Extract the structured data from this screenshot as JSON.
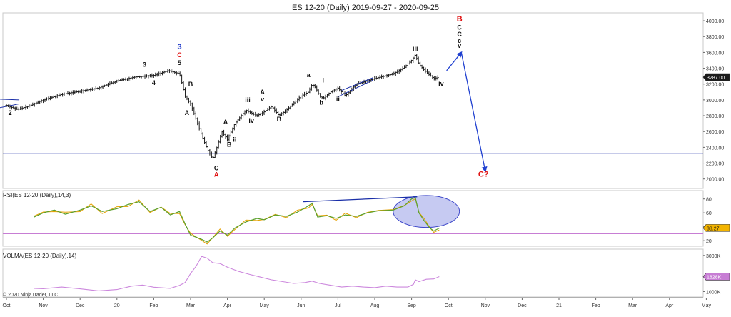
{
  "title": "ES 12-20 (Daily)  2019-09-27 - 2020-09-25",
  "copyright": "© 2020 NinjaTrader, LLC",
  "colors": {
    "price_bar": "#1a1a1a",
    "price_axis_bg": "#ffffff",
    "last_price_bg": "#1a1a1a",
    "support_line": "#1a2fa8",
    "wave_black": "#111111",
    "wave_red": "#e01010",
    "wave_blue": "#1a35c8",
    "projection": "#2040d0",
    "rsi_line": "#5aa02c",
    "rsi_signal": "#e5a000",
    "rsi_upper": "#b9c96a",
    "rsi_lower": "#c77dd4",
    "ellipse_fill": "#b3b8ee",
    "ellipse_stroke": "#3a44c8",
    "volma_line": "#cc88dd",
    "grid": "#e6e6e6",
    "rsi_badge": "#f3b400",
    "volma_badge": "#c77dd4"
  },
  "chart_data": [
    {
      "id": "price",
      "type": "ohlc",
      "title": "ES 12-20 (Daily)  2019-09-27 - 2020-09-25",
      "x_tick_labels": [
        "Oct",
        "Nov",
        "Dec",
        "20",
        "Feb",
        "Mar",
        "Apr",
        "May",
        "Jun",
        "Jul",
        "Aug",
        "Sep",
        "Oct",
        "Nov",
        "Dec",
        "21",
        "Feb",
        "Mar",
        "Apr",
        "May"
      ],
      "x_months_start": "2019-10",
      "ylim": [
        1880,
        4100
      ],
      "y_ticks": [
        2000,
        2200,
        2400,
        2600,
        2800,
        3000,
        3200,
        3400,
        3600,
        3800,
        4000
      ],
      "y_tick_labels": [
        "2000.00",
        "2200.00",
        "2400.00",
        "2600.00",
        "2800.00",
        "3000.00",
        "3200.00",
        "3400.00",
        "3600.00",
        "3800.00",
        "4000.00"
      ],
      "last_price": 3287,
      "last_price_label": "3287.00",
      "horizontal_support": 2320,
      "close_path_monthly": [
        [
          0,
          2930
        ],
        [
          0.3,
          2880
        ],
        [
          0.6,
          2920
        ],
        [
          1.0,
          3000
        ],
        [
          1.5,
          3070
        ],
        [
          2.0,
          3110
        ],
        [
          2.5,
          3150
        ],
        [
          3.0,
          3240
        ],
        [
          3.5,
          3290
        ],
        [
          4.0,
          3310
        ],
        [
          4.4,
          3370
        ],
        [
          4.7,
          3330
        ],
        [
          4.85,
          3050
        ],
        [
          5.0,
          2950
        ],
        [
          5.15,
          2750
        ],
        [
          5.3,
          2550
        ],
        [
          5.45,
          2380
        ],
        [
          5.6,
          2250
        ],
        [
          5.7,
          2380
        ],
        [
          5.85,
          2600
        ],
        [
          6.0,
          2500
        ],
        [
          6.2,
          2700
        ],
        [
          6.5,
          2870
        ],
        [
          6.8,
          2800
        ],
        [
          7.0,
          2850
        ],
        [
          7.2,
          2920
        ],
        [
          7.4,
          2800
        ],
        [
          7.6,
          2870
        ],
        [
          7.8,
          2960
        ],
        [
          8.0,
          3050
        ],
        [
          8.2,
          3100
        ],
        [
          8.3,
          3200
        ],
        [
          8.4,
          3150
        ],
        [
          8.5,
          3050
        ],
        [
          8.6,
          3020
        ],
        [
          8.8,
          3100
        ],
        [
          9.0,
          3150
        ],
        [
          9.2,
          3050
        ],
        [
          9.5,
          3200
        ],
        [
          10.0,
          3270
        ],
        [
          10.5,
          3330
        ],
        [
          10.8,
          3410
        ],
        [
          11.0,
          3500
        ],
        [
          11.1,
          3570
        ],
        [
          11.2,
          3450
        ],
        [
          11.4,
          3350
        ],
        [
          11.6,
          3270
        ],
        [
          11.75,
          3287
        ]
      ],
      "wave_labels": [
        {
          "text": "2",
          "x": 0.1,
          "y": 2810,
          "color": "black"
        },
        {
          "text": "3",
          "x": 3.75,
          "y": 3420,
          "color": "black"
        },
        {
          "text": "4",
          "x": 4.0,
          "y": 3190,
          "color": "black"
        },
        {
          "text": "3",
          "x": 4.7,
          "y": 3640,
          "color": "blue"
        },
        {
          "text": "C",
          "x": 4.7,
          "y": 3540,
          "color": "red"
        },
        {
          "text": "5",
          "x": 4.7,
          "y": 3440,
          "color": "black"
        },
        {
          "text": "B",
          "x": 5.0,
          "y": 3170,
          "color": "black"
        },
        {
          "text": "A",
          "x": 4.9,
          "y": 2810,
          "color": "black"
        },
        {
          "text": "C",
          "x": 5.7,
          "y": 2110,
          "color": "black"
        },
        {
          "text": "A",
          "x": 5.7,
          "y": 2030,
          "color": "red"
        },
        {
          "text": "A",
          "x": 5.95,
          "y": 2690,
          "color": "black"
        },
        {
          "text": "B",
          "x": 6.05,
          "y": 2410,
          "color": "black"
        },
        {
          "text": "ii",
          "x": 6.2,
          "y": 2470,
          "color": "black"
        },
        {
          "text": "iii",
          "x": 6.55,
          "y": 2970,
          "color": "black"
        },
        {
          "text": "iv",
          "x": 6.65,
          "y": 2710,
          "color": "black"
        },
        {
          "text": "A",
          "x": 6.95,
          "y": 3070,
          "color": "black"
        },
        {
          "text": "v",
          "x": 6.95,
          "y": 2980,
          "color": "black"
        },
        {
          "text": "B",
          "x": 7.4,
          "y": 2730,
          "color": "black"
        },
        {
          "text": "a",
          "x": 8.2,
          "y": 3290,
          "color": "black"
        },
        {
          "text": "i",
          "x": 8.6,
          "y": 3220,
          "color": "black"
        },
        {
          "text": "b",
          "x": 8.55,
          "y": 2940,
          "color": "black"
        },
        {
          "text": "ii",
          "x": 9.0,
          "y": 2980,
          "color": "black"
        },
        {
          "text": "iii",
          "x": 11.1,
          "y": 3620,
          "color": "black"
        },
        {
          "text": "iv",
          "x": 11.8,
          "y": 3180,
          "color": "black"
        },
        {
          "text": "B",
          "x": 12.3,
          "y": 3990,
          "color": "red"
        },
        {
          "text": "C",
          "x": 12.3,
          "y": 3890,
          "color": "black"
        },
        {
          "text": "C",
          "x": 12.3,
          "y": 3800,
          "color": "black"
        },
        {
          "text": "c",
          "x": 12.3,
          "y": 3720,
          "color": "black"
        },
        {
          "text": "v",
          "x": 12.3,
          "y": 3660,
          "color": "black"
        },
        {
          "text": "C?",
          "x": 12.95,
          "y": 2030,
          "color": "red"
        }
      ],
      "projection": [
        [
          11.95,
          3370
        ],
        [
          12.35,
          3600
        ],
        [
          13.0,
          2100
        ]
      ],
      "trendlines": [
        {
          "from": [
            -0.2,
            3010
          ],
          "to": [
            0.35,
            3000
          ]
        },
        {
          "from": [
            -0.2,
            2900
          ],
          "to": [
            0.35,
            2950
          ]
        },
        {
          "from": [
            9.1,
            3120
          ],
          "to": [
            9.95,
            3280
          ]
        },
        {
          "from": [
            9.0,
            3040
          ],
          "to": [
            9.95,
            3250
          ]
        }
      ]
    },
    {
      "id": "rsi",
      "type": "line",
      "title": "RSI(ES 12-20 (Daily),14,3)",
      "ylim": [
        12,
        92
      ],
      "y_ticks": [
        20,
        40,
        60,
        80
      ],
      "y_tick_labels": [
        "20",
        "40",
        "60",
        "80"
      ],
      "overbought": 70,
      "oversold": 30,
      "last_value_label": "38.27",
      "series": [
        {
          "values": [
            [
              0.75,
              54
            ],
            [
              1.0,
              60
            ],
            [
              1.3,
              64
            ],
            [
              1.6,
              58
            ],
            [
              2.0,
              64
            ],
            [
              2.3,
              70
            ],
            [
              2.6,
              62
            ],
            [
              3.0,
              66
            ],
            [
              3.3,
              72
            ],
            [
              3.6,
              76
            ],
            [
              3.9,
              62
            ],
            [
              4.2,
              68
            ],
            [
              4.45,
              57
            ],
            [
              4.7,
              62
            ],
            [
              4.85,
              44
            ],
            [
              5.0,
              28
            ],
            [
              5.3,
              22
            ],
            [
              5.45,
              18
            ],
            [
              5.6,
              24
            ],
            [
              5.8,
              34
            ],
            [
              6.0,
              28
            ],
            [
              6.2,
              38
            ],
            [
              6.5,
              47
            ],
            [
              6.8,
              52
            ],
            [
              7.0,
              50
            ],
            [
              7.3,
              57
            ],
            [
              7.6,
              55
            ],
            [
              7.9,
              61
            ],
            [
              8.2,
              70
            ],
            [
              8.3,
              74
            ],
            [
              8.45,
              54
            ],
            [
              8.7,
              56
            ],
            [
              8.95,
              52
            ],
            [
              9.2,
              57
            ],
            [
              9.5,
              55
            ],
            [
              9.8,
              60
            ],
            [
              10.1,
              63
            ],
            [
              10.5,
              64
            ],
            [
              10.8,
              70
            ],
            [
              11.0,
              80
            ],
            [
              11.1,
              82
            ],
            [
              11.2,
              60
            ],
            [
              11.35,
              48
            ],
            [
              11.5,
              38
            ],
            [
              11.6,
              34
            ],
            [
              11.75,
              38
            ]
          ]
        }
      ],
      "trendline": {
        "from": [
          8.05,
          76
        ],
        "to": [
          11.15,
          83
        ]
      },
      "highlight_ellipse": {
        "cx": 11.4,
        "cy": 62,
        "rx": 0.9,
        "ry": 23
      }
    },
    {
      "id": "volma",
      "type": "line",
      "title": "VOLMA(ES 12-20 (Daily),14)",
      "ylim": [
        700,
        3350
      ],
      "y_ticks": [
        1000,
        3000
      ],
      "y_tick_labels": [
        "1000K",
        "3000K"
      ],
      "last_value_label": "1828K",
      "series": [
        {
          "values": [
            [
              0.75,
              1180
            ],
            [
              1.0,
              1160
            ],
            [
              1.5,
              1250
            ],
            [
              2.0,
              1150
            ],
            [
              2.5,
              1040
            ],
            [
              3.0,
              1110
            ],
            [
              3.4,
              1300
            ],
            [
              3.7,
              1360
            ],
            [
              4.0,
              1240
            ],
            [
              4.45,
              1180
            ],
            [
              4.7,
              1340
            ],
            [
              4.85,
              1500
            ],
            [
              5.0,
              2000
            ],
            [
              5.15,
              2400
            ],
            [
              5.3,
              2950
            ],
            [
              5.45,
              2850
            ],
            [
              5.6,
              2600
            ],
            [
              5.8,
              2550
            ],
            [
              6.0,
              2350
            ],
            [
              6.3,
              2120
            ],
            [
              6.6,
              1950
            ],
            [
              6.9,
              1800
            ],
            [
              7.2,
              1650
            ],
            [
              7.5,
              1550
            ],
            [
              7.8,
              1450
            ],
            [
              8.1,
              1500
            ],
            [
              8.3,
              1580
            ],
            [
              8.5,
              1450
            ],
            [
              8.8,
              1350
            ],
            [
              9.1,
              1250
            ],
            [
              9.4,
              1300
            ],
            [
              9.7,
              1250
            ],
            [
              10.0,
              1220
            ],
            [
              10.3,
              1300
            ],
            [
              10.6,
              1250
            ],
            [
              10.9,
              1250
            ],
            [
              11.05,
              1400
            ],
            [
              11.1,
              1650
            ],
            [
              11.2,
              1550
            ],
            [
              11.4,
              1680
            ],
            [
              11.6,
              1700
            ],
            [
              11.75,
              1828
            ]
          ]
        }
      ]
    }
  ]
}
